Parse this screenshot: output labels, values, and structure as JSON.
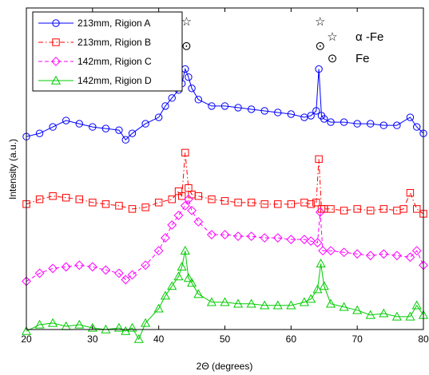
{
  "chart_data": {
    "type": "scatter",
    "title": "",
    "xlabel": "2Θ (degrees)",
    "ylabel": "Intensity (a.u.)",
    "xlim": [
      20,
      80
    ],
    "ylim": [
      0,
      10
    ],
    "xticks": [
      "20",
      "30",
      "40",
      "50",
      "60",
      "70",
      "80"
    ],
    "grid": false,
    "legend_position": "top-left",
    "colors": {
      "A": "#0000ff",
      "B": "#ff0000",
      "C": "#ff00ff",
      "D": "#00cc00"
    },
    "series": [
      {
        "name": "213mm, Rigion A",
        "marker": "circle",
        "line": "solid",
        "x": [
          20,
          22,
          24,
          26,
          28,
          30,
          32,
          34,
          35,
          36,
          38,
          40,
          41,
          42,
          43,
          43.5,
          44,
          44.5,
          45,
          46,
          48,
          50,
          52,
          54,
          56,
          58,
          60,
          62,
          63,
          63.8,
          64.2,
          64.6,
          65,
          66,
          68,
          70,
          72,
          74,
          76,
          78,
          79,
          80
        ],
        "y": [
          6.0,
          6.1,
          6.3,
          6.5,
          6.4,
          6.3,
          6.25,
          6.2,
          5.9,
          6.1,
          6.4,
          6.6,
          6.95,
          7.2,
          7.45,
          7.65,
          8.1,
          7.85,
          7.5,
          7.15,
          6.95,
          6.95,
          6.9,
          6.85,
          6.8,
          6.75,
          6.7,
          6.6,
          6.65,
          6.8,
          8.1,
          6.65,
          6.55,
          6.45,
          6.45,
          6.4,
          6.4,
          6.35,
          6.35,
          6.6,
          6.3,
          6.1
        ]
      },
      {
        "name": "213mm, Rigion B",
        "marker": "square",
        "line": "dashdot",
        "x": [
          20,
          22,
          24,
          26,
          28,
          30,
          32,
          34,
          36,
          38,
          40,
          42,
          43,
          43.5,
          44,
          44.5,
          45,
          46,
          48,
          50,
          52,
          54,
          56,
          58,
          60,
          62,
          63,
          63.8,
          64.2,
          64.6,
          65,
          66,
          68,
          70,
          72,
          74,
          76,
          77,
          78,
          79,
          80
        ],
        "y": [
          3.9,
          4.05,
          4.15,
          4.1,
          4.05,
          3.95,
          3.9,
          3.85,
          3.75,
          3.8,
          3.95,
          4.05,
          4.3,
          4.15,
          5.5,
          4.4,
          4.2,
          4.15,
          4.05,
          4.0,
          3.95,
          3.95,
          3.9,
          3.9,
          3.9,
          3.95,
          3.9,
          3.95,
          5.3,
          3.75,
          3.75,
          3.75,
          3.7,
          3.75,
          3.7,
          3.75,
          3.7,
          3.75,
          4.25,
          3.75,
          3.6
        ]
      },
      {
        "name": "142mm, Rigion C",
        "marker": "diamond",
        "line": "dash",
        "x": [
          20,
          22,
          24,
          26,
          28,
          30,
          32,
          34,
          35,
          36,
          38,
          40,
          41,
          42,
          43,
          44,
          44.5,
          45,
          46,
          48,
          50,
          52,
          54,
          56,
          58,
          60,
          62,
          63,
          64,
          64.4,
          64.8,
          66,
          68,
          70,
          72,
          74,
          76,
          78,
          79,
          80
        ],
        "y": [
          1.5,
          1.75,
          1.9,
          1.95,
          2.0,
          1.95,
          1.85,
          1.75,
          1.55,
          1.7,
          2.0,
          2.45,
          2.85,
          3.25,
          3.55,
          3.85,
          4.05,
          3.7,
          3.35,
          2.95,
          2.95,
          2.9,
          2.9,
          2.85,
          2.85,
          2.8,
          2.8,
          2.75,
          2.7,
          3.65,
          2.45,
          2.45,
          2.4,
          2.35,
          2.3,
          2.35,
          2.3,
          2.25,
          2.45,
          2.0
        ]
      },
      {
        "name": "142mm, Rigion D",
        "marker": "triangle",
        "line": "solid",
        "x": [
          20,
          22,
          24,
          26,
          28,
          30,
          32,
          34,
          35,
          36,
          37,
          38,
          40,
          41,
          42,
          43,
          43.5,
          44,
          44.5,
          45,
          46,
          48,
          50,
          52,
          54,
          56,
          58,
          60,
          62,
          63,
          64,
          64.5,
          65,
          66,
          68,
          70,
          72,
          74,
          76,
          78,
          79,
          80
        ],
        "y": [
          -0.05,
          0.15,
          0.2,
          0.1,
          0.15,
          0.05,
          0.0,
          0.05,
          -0.05,
          0.05,
          -0.3,
          0.2,
          0.65,
          1.05,
          1.35,
          1.65,
          1.95,
          2.45,
          1.6,
          1.45,
          1.1,
          0.85,
          0.85,
          0.8,
          0.8,
          0.75,
          0.75,
          0.75,
          0.85,
          0.95,
          1.25,
          2.05,
          1.35,
          0.8,
          0.7,
          0.6,
          0.45,
          0.5,
          0.4,
          0.4,
          0.75,
          0.45
        ]
      }
    ],
    "annotations": [
      {
        "symbol": "☆",
        "x": 44.2,
        "y": 9.6
      },
      {
        "symbol": "⊙",
        "x": 44.2,
        "y": 8.85
      },
      {
        "symbol": "☆",
        "x": 64.4,
        "y": 9.6
      },
      {
        "symbol": "⊙",
        "x": 64.4,
        "y": 8.85
      }
    ],
    "phase_legend": [
      {
        "symbol": "☆",
        "label": "α -Fe"
      },
      {
        "symbol": "⊙",
        "label": "Fe"
      }
    ]
  }
}
